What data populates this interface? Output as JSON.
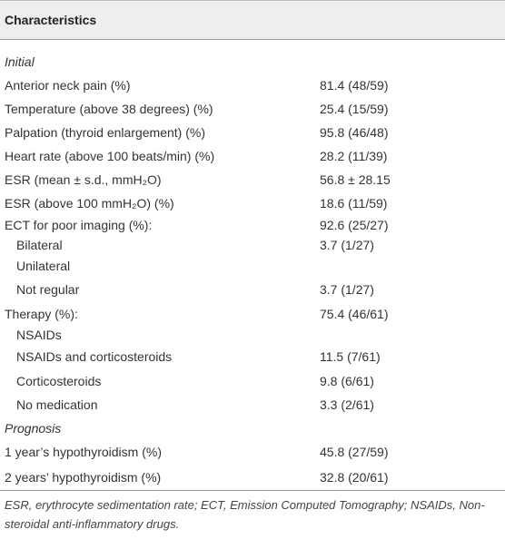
{
  "table": {
    "header": "Characteristics",
    "rows": [
      [
        "Initial"
      ],
      [
        "Anterior neck pain (%)",
        "81.4 (48/59)"
      ],
      [
        "Temperature (above 38 degrees) (%)",
        "25.4 (15/59)"
      ],
      [
        "Palpation (thyroid enlargement) (%)",
        "95.8 (46/48)"
      ],
      [
        "Heart rate (above 100 beats/min) (%)",
        "28.2 (11/39)"
      ],
      [
        "ESR (mean ± s.d., mmH₂O)",
        "56.8 ± 28.15"
      ],
      [
        "ESR (above 100 mmH₂O) (%)",
        "18.6 (11/59)"
      ],
      [
        "ECT for poor imaging (%):",
        "92.6 (25/27)"
      ],
      [
        "Bilateral",
        "3.7 (1/27)"
      ],
      [
        "Unilateral"
      ],
      [
        "Not regular",
        "3.7 (1/27)"
      ],
      [
        "Therapy (%):",
        "75.4 (46/61)"
      ],
      [
        "NSAIDs"
      ],
      [
        "NSAIDs and corticosteroids",
        "11.5 (7/61)"
      ],
      [
        "Corticosteroids",
        "9.8 (6/61)"
      ],
      [
        "No medication",
        "3.3 (2/61)"
      ],
      [
        "Prognosis"
      ],
      [
        "1 year’s hypothyroidism (%)",
        "45.8 (27/59)"
      ],
      [
        "2 years’ hypothyroidism (%)",
        "32.8 (20/61)"
      ]
    ],
    "footnote": "ESR, erythrocyte sedimentation rate; ECT, Emission Computed Tomography; NSAIDs, Non-steroidal anti-inflammatory drugs."
  }
}
